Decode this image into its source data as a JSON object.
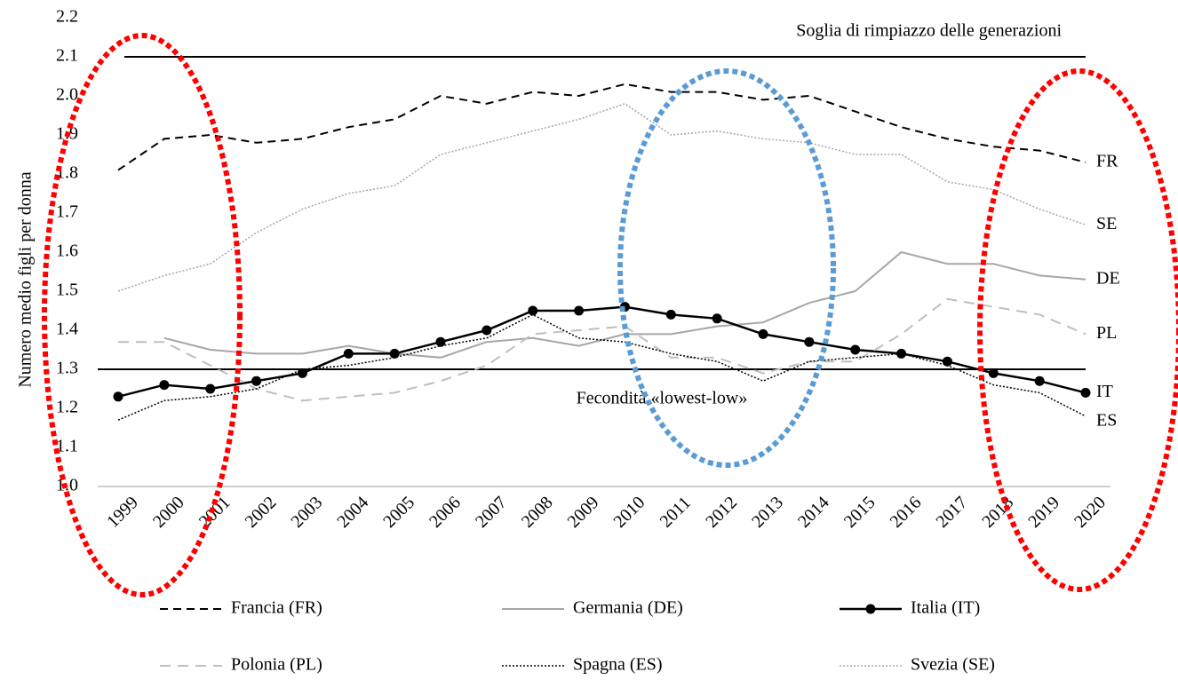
{
  "chart_data": {
    "type": "line",
    "y_label": "Numero medio figli per donna",
    "categories": [
      "1999",
      "2000",
      "2001",
      "2002",
      "2003",
      "2004",
      "2005",
      "2006",
      "2007",
      "2008",
      "2009",
      "2010",
      "2011",
      "2012",
      "2013",
      "2014",
      "2015",
      "2016",
      "2017",
      "2018",
      "2019",
      "2020"
    ],
    "ylim": [
      1.0,
      2.2
    ],
    "yticks": [
      {
        "value": 1.0,
        "label": "1.0"
      },
      1.1,
      1.2,
      1.3,
      1.4,
      1.5,
      1.6,
      1.7,
      1.8,
      1.9,
      {
        "value": 2.0,
        "label": "2.0"
      },
      2.1,
      2.2
    ],
    "reference_lines": [
      {
        "value": 2.1,
        "label": "Soglia di rimpiazzo delle generazioni"
      },
      {
        "value": 1.3,
        "label": "Fecondità  «lowest-low»"
      }
    ],
    "series": [
      {
        "name": "Francia (FR)",
        "label": "FR",
        "color": "#000000",
        "dash": "9,6",
        "width": 2,
        "values": [
          1.81,
          1.89,
          1.9,
          1.88,
          1.89,
          1.92,
          1.94,
          2.0,
          1.98,
          2.01,
          2.0,
          2.03,
          2.01,
          2.01,
          1.99,
          2.0,
          1.96,
          1.92,
          1.89,
          1.87,
          1.86,
          1.83
        ]
      },
      {
        "name": "Germania (DE)",
        "label": "DE",
        "color": "#a6a6a6",
        "dash": "none",
        "width": 2,
        "values": [
          null,
          1.38,
          1.35,
          1.34,
          1.34,
          1.36,
          1.34,
          1.33,
          1.37,
          1.38,
          1.36,
          1.39,
          1.39,
          1.41,
          1.42,
          1.47,
          1.5,
          1.6,
          1.57,
          1.57,
          1.54,
          1.53
        ]
      },
      {
        "name": "Italia (IT)",
        "label": "IT",
        "color": "#000000",
        "dash": "none",
        "width": 2.5,
        "marker": true,
        "values": [
          1.23,
          1.26,
          1.25,
          1.27,
          1.29,
          1.34,
          1.34,
          1.37,
          1.4,
          1.45,
          1.45,
          1.46,
          1.44,
          1.43,
          1.39,
          1.37,
          1.35,
          1.34,
          1.32,
          1.29,
          1.27,
          1.24
        ]
      },
      {
        "name": "Polonia (PL)",
        "label": "PL",
        "color": "#bfbfbf",
        "dash": "12,8",
        "width": 2,
        "values": [
          1.37,
          1.37,
          1.31,
          1.25,
          1.22,
          1.23,
          1.24,
          1.27,
          1.31,
          1.39,
          1.4,
          1.41,
          1.33,
          1.33,
          1.29,
          1.32,
          1.32,
          1.39,
          1.48,
          1.46,
          1.44,
          1.39
        ]
      },
      {
        "name": "Spagna (ES)",
        "label": "ES",
        "color": "#000000",
        "dash": "2,2",
        "width": 1.5,
        "values": [
          1.17,
          1.22,
          1.23,
          1.25,
          1.3,
          1.31,
          1.33,
          1.36,
          1.38,
          1.44,
          1.38,
          1.37,
          1.34,
          1.32,
          1.27,
          1.32,
          1.33,
          1.34,
          1.31,
          1.26,
          1.24,
          1.18
        ]
      },
      {
        "name": "Svezia (SE)",
        "label": "SE",
        "color": "#a6a6a6",
        "dash": "2,2",
        "width": 1.5,
        "values": [
          1.5,
          1.54,
          1.57,
          1.65,
          1.71,
          1.75,
          1.77,
          1.85,
          1.88,
          1.91,
          1.94,
          1.98,
          1.9,
          1.91,
          1.89,
          1.88,
          1.85,
          1.85,
          1.78,
          1.76,
          1.71,
          1.67
        ]
      }
    ]
  }
}
